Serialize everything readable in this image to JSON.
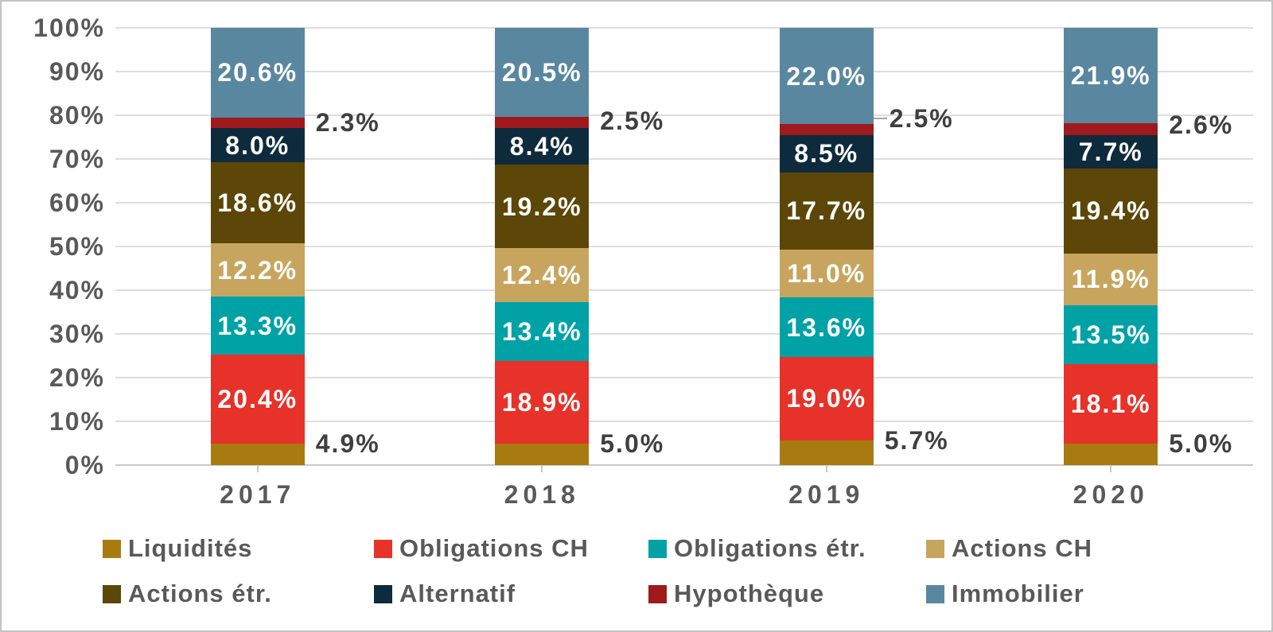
{
  "chart_data": {
    "type": "bar",
    "stacked": true,
    "percent_chart": true,
    "title": "",
    "categories": [
      "2017",
      "2018",
      "2019",
      "2020"
    ],
    "series": [
      {
        "name": "Liquidités",
        "color": "#A87B10",
        "values": [
          4.9,
          5.0,
          5.7,
          5.0
        ],
        "label_position": "outside-right-top"
      },
      {
        "name": "Obligations CH",
        "color": "#E63229",
        "values": [
          20.4,
          18.9,
          19.0,
          18.1
        ],
        "label_position": "inside"
      },
      {
        "name": "Obligations étr.",
        "color": "#00A2A6",
        "values": [
          13.3,
          13.4,
          13.6,
          13.5
        ],
        "label_position": "inside"
      },
      {
        "name": "Actions CH",
        "color": "#C8A55E",
        "values": [
          12.2,
          12.4,
          11.0,
          11.9
        ],
        "label_position": "inside"
      },
      {
        "name": "Actions étr.",
        "color": "#5C4708",
        "values": [
          18.6,
          19.2,
          17.7,
          19.4
        ],
        "label_position": "inside"
      },
      {
        "name": "Alternatif",
        "color": "#0E2B3D",
        "values": [
          8.0,
          8.4,
          8.5,
          7.7
        ],
        "label_position": "inside"
      },
      {
        "name": "Hypothèque",
        "color": "#9E1A1C",
        "values": [
          2.3,
          2.5,
          2.5,
          2.6
        ],
        "label_position": "outside-right-center"
      },
      {
        "name": "Immobilier",
        "color": "#5A87A0",
        "values": [
          20.6,
          20.5,
          22.0,
          21.9
        ],
        "label_position": "inside"
      }
    ],
    "value_suffix": "%",
    "y_axis": {
      "min": 0,
      "max": 100,
      "grid": true,
      "ticks": [
        "0%",
        "10%",
        "20%",
        "30%",
        "40%",
        "50%",
        "60%",
        "70%",
        "80%",
        "90%",
        "100%"
      ]
    },
    "callouts": {
      "hypotheque_label_dy": [
        0,
        -2,
        -14,
        -5
      ],
      "leader_line_category_index": 2
    },
    "legend": {
      "position": "bottom",
      "rows": [
        [
          "Liquidités",
          "Obligations CH",
          "Obligations étr.",
          "Actions CH"
        ],
        [
          "Actions étr.",
          "Alternatif",
          "Hypothèque",
          "Immobilier"
        ]
      ]
    },
    "colors": {
      "axis_text": "#595959",
      "outside_label_text": "#3f3f3f",
      "gridline": "#dedede",
      "axis_line": "#c9c9c9",
      "background": "#ffffff"
    }
  }
}
